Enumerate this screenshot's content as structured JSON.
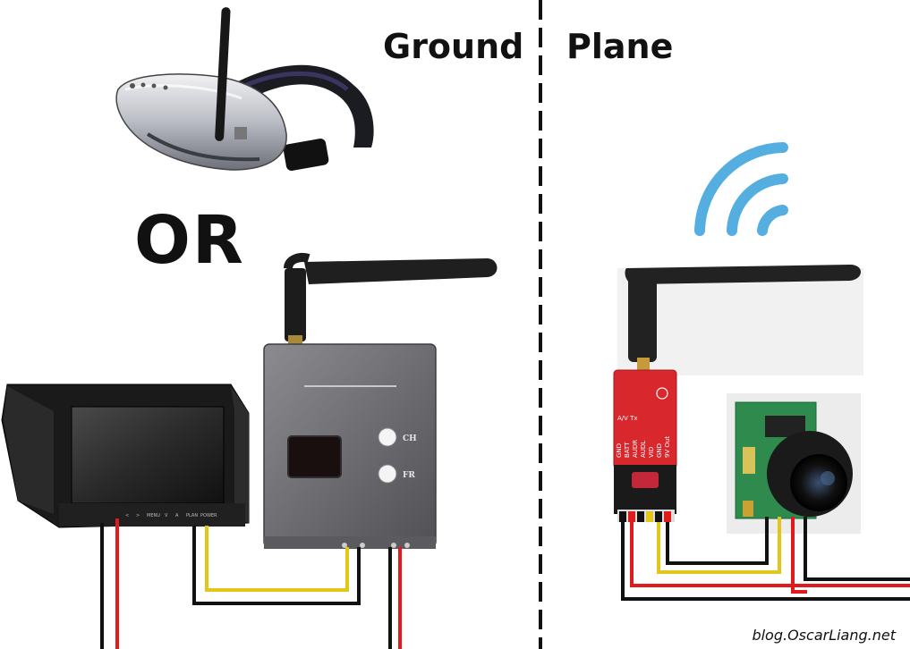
{
  "labels": {
    "ground": "Ground",
    "plane": "Plane",
    "or": "OR",
    "credit": "blog.OscarLiang.net"
  },
  "receiver": {
    "ch_button": "CH",
    "fr_button": "FR"
  },
  "transmitter": {
    "module_label": "A/V Tx",
    "pins": [
      "GND",
      "BATT",
      "AUDR",
      "AUDL",
      "VID",
      "GND",
      "9V Out"
    ]
  },
  "monitor": {
    "button_labels": [
      "<",
      ">",
      "MENU",
      "V",
      "A",
      "PLAN",
      "POWER"
    ]
  },
  "colors": {
    "wire_black": "#111111",
    "wire_red": "#e01b1b",
    "wire_yellow": "#e3c619",
    "signal_blue": "#55aee0",
    "divider": "#111111"
  }
}
